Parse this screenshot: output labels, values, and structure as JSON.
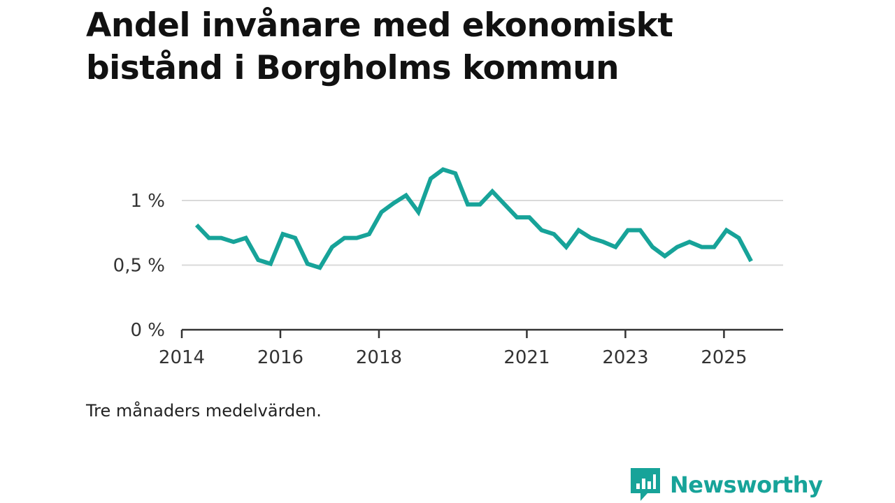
{
  "title": "Andel invånare med ekonomiskt bistånd i Borgholms kommun",
  "note": "Tre månaders medelvärden.",
  "brand": {
    "name": "Newsworthy"
  },
  "colors": {
    "line": "#17a399",
    "grid": "#d9d9d9",
    "axis": "#333333",
    "brand": "#17a399"
  },
  "chart_data": {
    "type": "line",
    "title": "Andel invånare med ekonomiskt bistånd i Borgholms kommun",
    "xlabel": "",
    "ylabel": "",
    "xlim": [
      2014.0,
      2026.2
    ],
    "ylim": [
      0,
      1.0
    ],
    "grid": true,
    "y_ticks": [
      {
        "value": 0,
        "label": "0 %"
      },
      {
        "value": 0.5,
        "label": "0,5 %"
      },
      {
        "value": 1.0,
        "label": "1 %"
      }
    ],
    "x_ticks": [
      {
        "value": 2014,
        "label": "2014"
      },
      {
        "value": 2016,
        "label": "2016"
      },
      {
        "value": 2018,
        "label": "2018"
      },
      {
        "value": 2021,
        "label": "2021"
      },
      {
        "value": 2023,
        "label": "2023"
      },
      {
        "value": 2025,
        "label": "2025"
      }
    ],
    "series": [
      {
        "name": "Andel invånare med ekonomiskt bistånd",
        "x": [
          2014.3,
          2014.55,
          2014.8,
          2015.05,
          2015.3,
          2015.55,
          2015.8,
          2016.05,
          2016.3,
          2016.55,
          2016.8,
          2017.05,
          2017.3,
          2017.55,
          2017.8,
          2018.05,
          2018.3,
          2018.55,
          2018.8,
          2019.05,
          2019.3,
          2019.55,
          2019.8,
          2020.05,
          2020.3,
          2020.55,
          2020.8,
          2021.05,
          2021.3,
          2021.55,
          2021.8,
          2022.05,
          2022.3,
          2022.55,
          2022.8,
          2023.05,
          2023.3,
          2023.55,
          2023.8,
          2024.05,
          2024.3,
          2024.55,
          2024.8,
          2025.05,
          2025.3,
          2025.55
        ],
        "values": [
          0.81,
          0.71,
          0.71,
          0.68,
          0.71,
          0.54,
          0.51,
          0.74,
          0.71,
          0.51,
          0.48,
          0.64,
          0.71,
          0.71,
          0.74,
          0.91,
          0.98,
          1.04,
          0.91,
          1.17,
          1.24,
          1.21,
          0.97,
          0.97,
          1.07,
          0.97,
          0.87,
          0.87,
          0.77,
          0.74,
          0.64,
          0.77,
          0.71,
          0.68,
          0.64,
          0.77,
          0.77,
          0.64,
          0.57,
          0.64,
          0.68,
          0.64,
          0.64,
          0.77,
          0.71,
          0.53
        ]
      }
    ]
  }
}
